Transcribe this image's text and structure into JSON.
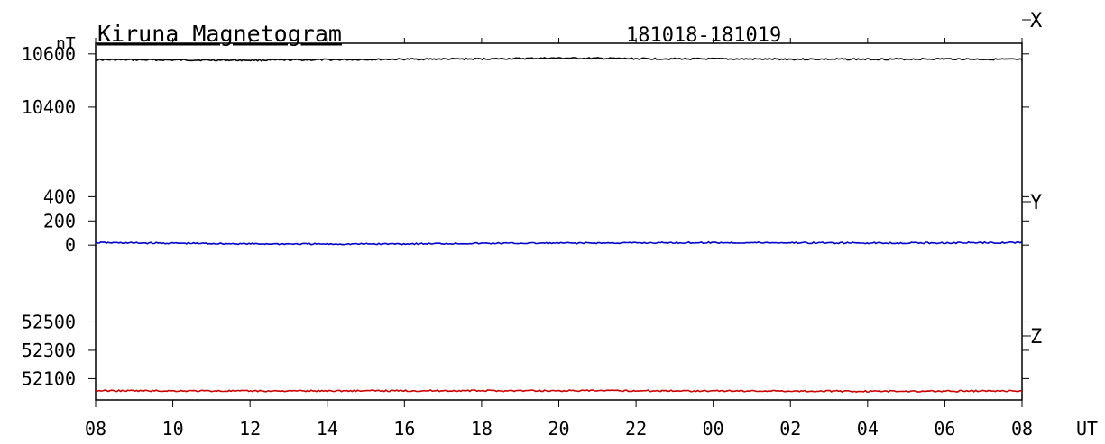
{
  "chart_data": {
    "type": "line",
    "title": "Kiruna Magnetogram",
    "date_range": "181018-181019",
    "unit_label": "nT",
    "xlabel": "UT",
    "x_ticks": [
      "08",
      "10",
      "12",
      "14",
      "16",
      "18",
      "20",
      "22",
      "00",
      "02",
      "04",
      "06",
      "08"
    ],
    "x_range_hours": [
      0,
      24
    ],
    "grid": false,
    "panels": [
      {
        "name": "X",
        "color": "#000000",
        "y_ticks": [
          10600,
          10400
        ],
        "ylim": [
          10200,
          10640
        ],
        "baseline": 10580
      },
      {
        "name": "Y",
        "color": "#0000cc",
        "y_ticks": [
          400,
          200,
          0
        ],
        "ylim": [
          -400,
          700
        ],
        "baseline": 20
      },
      {
        "name": "Z",
        "color": "#cc0000",
        "y_ticks": [
          52500,
          52300,
          52100
        ],
        "ylim": [
          51950,
          52700
        ],
        "baseline": 52015
      }
    ],
    "series": [
      {
        "name": "X",
        "panel": 0,
        "x": [
          0,
          2,
          4,
          6,
          8,
          10,
          12,
          14,
          16,
          18,
          20,
          22,
          24
        ],
        "values": [
          10578,
          10577,
          10576,
          10578,
          10580,
          10581,
          10584,
          10582,
          10581,
          10580,
          10580,
          10581,
          10579
        ]
      },
      {
        "name": "Y",
        "panel": 1,
        "x": [
          0,
          2,
          4,
          6,
          8,
          10,
          12,
          14,
          16,
          18,
          20,
          22,
          24
        ],
        "values": [
          20,
          15,
          10,
          8,
          10,
          14,
          16,
          18,
          20,
          19,
          17,
          18,
          21
        ]
      },
      {
        "name": "Z",
        "panel": 2,
        "x": [
          0,
          2,
          4,
          6,
          8,
          10,
          12,
          14,
          16,
          18,
          20,
          22,
          24
        ],
        "values": [
          52015,
          52014,
          52013,
          52014,
          52015,
          52015,
          52015,
          52015,
          52014,
          52013,
          52011,
          52012,
          52014
        ]
      }
    ]
  }
}
